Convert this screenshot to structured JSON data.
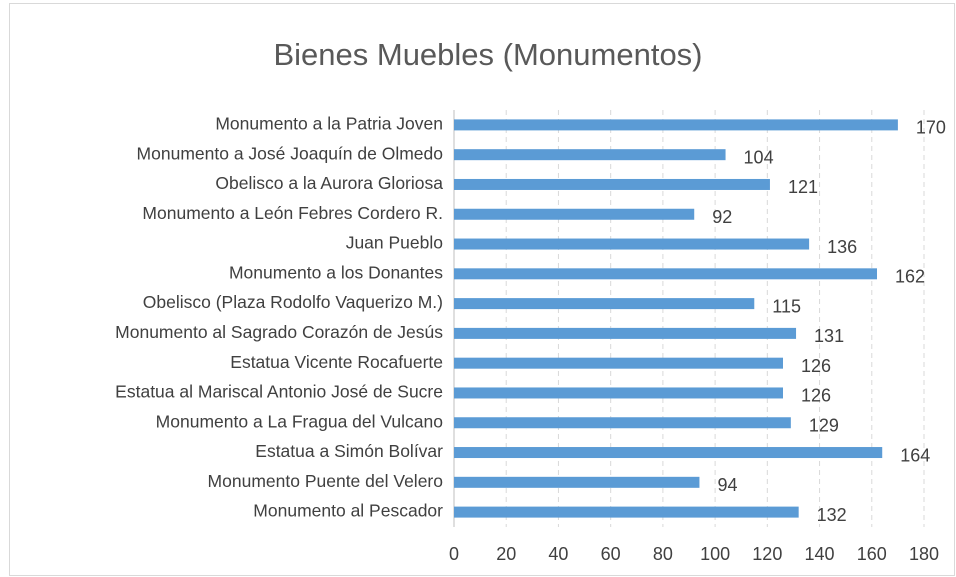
{
  "chart_data": {
    "type": "bar",
    "orientation": "horizontal",
    "title": "Bienes Muebles (Monumentos)",
    "categories": [
      "Monumento a la Patria Joven",
      "Monumento a José Joaquín de Olmedo",
      "Obelisco a la Aurora Gloriosa",
      "Monumento a León Febres Cordero R.",
      "Juan Pueblo",
      "Monumento a los Donantes",
      "Obelisco (Plaza Rodolfo Vaquerizo M.)",
      "Monumento al Sagrado Corazón de Jesús",
      "Estatua Vicente Rocafuerte",
      "Estatua al Mariscal Antonio José de Sucre",
      "Monumento a La Fragua del Vulcano",
      "Estatua a Simón Bolívar",
      "Monumento Puente del Velero",
      "Monumento al Pescador"
    ],
    "values": [
      170,
      104,
      121,
      92,
      136,
      162,
      115,
      131,
      126,
      126,
      129,
      164,
      94,
      132
    ],
    "color": "#5b9bd5",
    "xlim": [
      0,
      180
    ],
    "xticks": [
      0,
      20,
      40,
      60,
      80,
      100,
      120,
      140,
      160,
      180
    ],
    "grid": true
  }
}
